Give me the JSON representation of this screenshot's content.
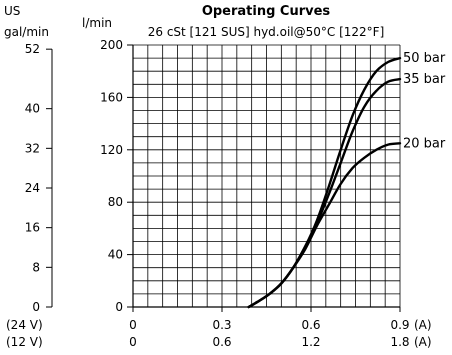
{
  "chart_data": {
    "type": "line",
    "title": "Operating Curves",
    "subtitle": "26 cSt [121 SUS] hyd.oil@50°C [122°F]",
    "left_axis_unit_top": "US",
    "left_axis_unit_bottom": "gal/min",
    "primary_axis_unit": "l/min",
    "secondary_axis_ticks": [
      "0",
      "8",
      "16",
      "24",
      "32",
      "40",
      "52"
    ],
    "ylim": [
      0,
      200
    ],
    "y_ticks": [
      0,
      40,
      80,
      120,
      160,
      200
    ],
    "xlim": [
      0,
      0.9
    ],
    "x_ticks_24v": [
      "0",
      "0.3",
      "0.6",
      "0.9"
    ],
    "x_ticks_12v": [
      "0",
      "0.6",
      "1.2",
      "1.8"
    ],
    "row_label_24v": "(24 V)",
    "row_label_12v": "(12 V)",
    "x_unit_label": "(A)",
    "grid": true,
    "series": [
      {
        "name": "50 bar",
        "x": [
          0.39,
          0.42,
          0.46,
          0.5,
          0.54,
          0.58,
          0.62,
          0.66,
          0.7,
          0.74,
          0.78,
          0.82,
          0.86,
          0.9
        ],
        "y": [
          0,
          4,
          10,
          18,
          30,
          46,
          66,
          92,
          120,
          146,
          166,
          180,
          187,
          190
        ]
      },
      {
        "name": "35 bar",
        "x": [
          0.39,
          0.42,
          0.46,
          0.5,
          0.54,
          0.58,
          0.62,
          0.66,
          0.7,
          0.74,
          0.78,
          0.82,
          0.86,
          0.9
        ],
        "y": [
          0,
          4,
          10,
          18,
          30,
          46,
          64,
          86,
          110,
          134,
          153,
          165,
          172,
          174
        ]
      },
      {
        "name": "20 bar",
        "x": [
          0.39,
          0.42,
          0.46,
          0.5,
          0.54,
          0.58,
          0.62,
          0.66,
          0.7,
          0.74,
          0.78,
          0.82,
          0.86,
          0.9
        ],
        "y": [
          0,
          4,
          10,
          18,
          30,
          44,
          62,
          78,
          94,
          106,
          114,
          120,
          124,
          125
        ]
      }
    ]
  }
}
